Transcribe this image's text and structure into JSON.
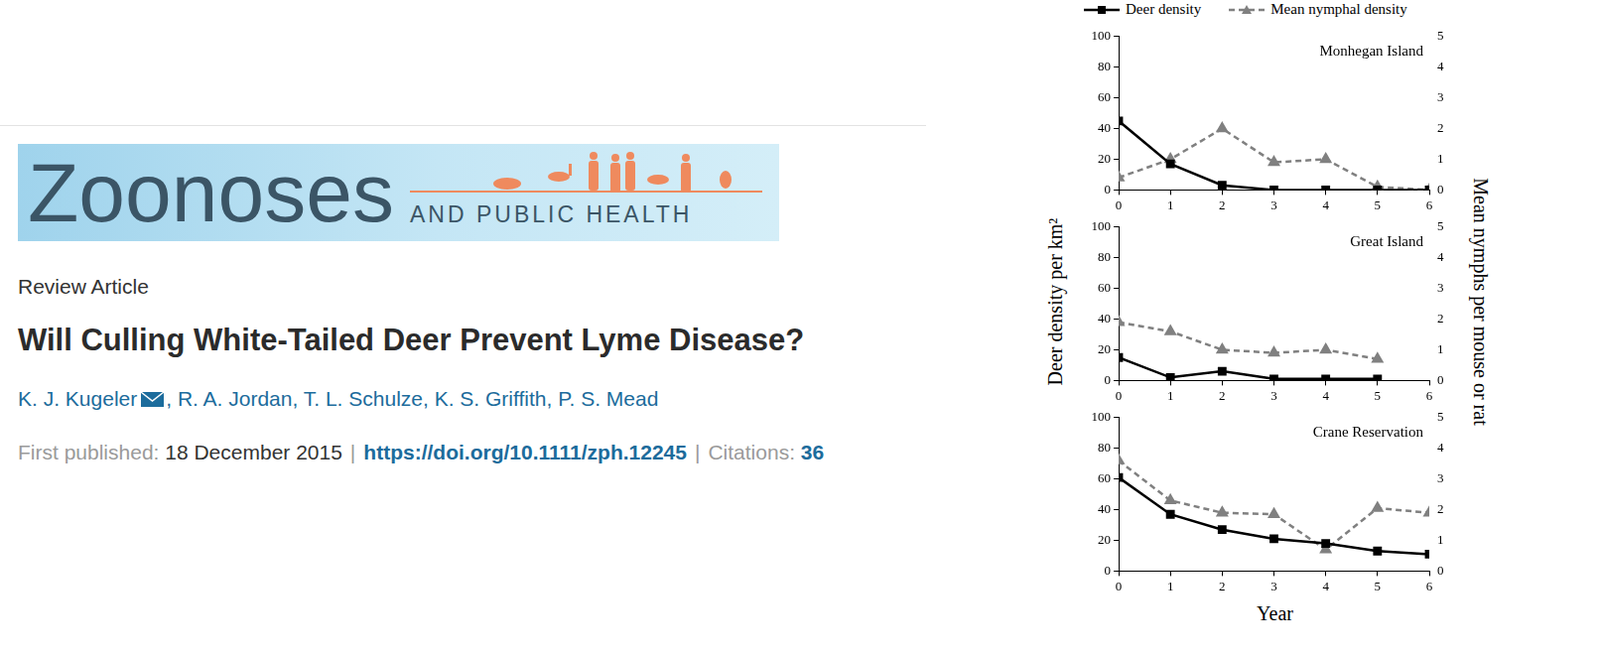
{
  "paper": {
    "journal_name": "Zoonoses",
    "journal_subtitle": "AND PUBLIC HEALTH",
    "article_type": "Review Article",
    "title": "Will Culling White-Tailed Deer Prevent Lyme Disease?",
    "authors": [
      "K. J. Kugeler",
      "R. A. Jordan",
      "T. L. Schulze",
      "K. S. Griffith",
      "P. S. Mead"
    ],
    "author_separator": ", ",
    "published_label": "First published:",
    "published_date": "18 December 2015",
    "separator": "|",
    "doi": "https://doi.org/10.1111/zph.12245",
    "citations_label": "Citations:",
    "citations": 36
  },
  "figure": {
    "y_label": "Deer density per km²",
    "y2_label": "Mean nymphs per mouse or rat",
    "x_label": "Year",
    "legend": "top"
  },
  "chart_data": [
    {
      "type": "line",
      "title": "Monhegan Island",
      "x": [
        0,
        1,
        2,
        3,
        4,
        5,
        6
      ],
      "series": [
        {
          "name": "Deer density",
          "color": "#000000",
          "marker": "square",
          "line_style": "solid",
          "values": [
            45,
            17,
            3,
            0,
            0,
            0,
            0
          ]
        },
        {
          "name": "Mean nymphal density",
          "color": "#808080",
          "marker": "triangle",
          "line_style": "dashed",
          "axis": "y2",
          "values": [
            0.4,
            1.0,
            2.0,
            0.9,
            1.0,
            0.1,
            0
          ]
        }
      ],
      "xlim": [
        0,
        6
      ],
      "xticks": [
        0,
        1,
        2,
        3,
        4,
        5,
        6
      ],
      "ylim": [
        0,
        100
      ],
      "yticks": [
        0,
        20,
        40,
        60,
        80,
        100
      ],
      "y2lim": [
        0,
        5
      ],
      "y2ticks": [
        0,
        1,
        2,
        3,
        4,
        5
      ],
      "grid": false
    },
    {
      "type": "line",
      "title": "Great Island",
      "x": [
        0,
        1,
        2,
        3,
        4,
        5,
        6
      ],
      "series": [
        {
          "name": "Deer density",
          "color": "#000000",
          "marker": "square",
          "line_style": "solid",
          "values": [
            15,
            2,
            6,
            1,
            1,
            1,
            null
          ]
        },
        {
          "name": "Mean nymphal density",
          "color": "#808080",
          "marker": "triangle",
          "line_style": "dashed",
          "axis": "y2",
          "values": [
            1.9,
            1.6,
            1.0,
            0.9,
            1.0,
            0.7,
            null
          ]
        }
      ],
      "xlim": [
        0,
        6
      ],
      "xticks": [
        0,
        1,
        2,
        3,
        4,
        5,
        6
      ],
      "ylim": [
        0,
        100
      ],
      "yticks": [
        0,
        20,
        40,
        60,
        80,
        100
      ],
      "y2lim": [
        0,
        5
      ],
      "y2ticks": [
        0,
        1,
        2,
        3,
        4,
        5
      ],
      "grid": false
    },
    {
      "type": "line",
      "title": "Crane Reservation",
      "x": [
        0,
        1,
        2,
        3,
        4,
        5,
        6
      ],
      "series": [
        {
          "name": "Deer density",
          "color": "#000000",
          "marker": "square",
          "line_style": "solid",
          "values": [
            61,
            37,
            27,
            21,
            18,
            13,
            11
          ]
        },
        {
          "name": "Mean nymphal density",
          "color": "#808080",
          "marker": "triangle",
          "line_style": "dashed",
          "axis": "y2",
          "values": [
            3.6,
            2.3,
            1.9,
            1.85,
            0.7,
            2.05,
            1.9
          ]
        }
      ],
      "xlim": [
        0,
        6
      ],
      "xticks": [
        0,
        1,
        2,
        3,
        4,
        5,
        6
      ],
      "ylim": [
        0,
        100
      ],
      "yticks": [
        0,
        20,
        40,
        60,
        80,
        100
      ],
      "y2lim": [
        0,
        5
      ],
      "y2ticks": [
        0,
        1,
        2,
        3,
        4,
        5
      ],
      "grid": false
    }
  ]
}
